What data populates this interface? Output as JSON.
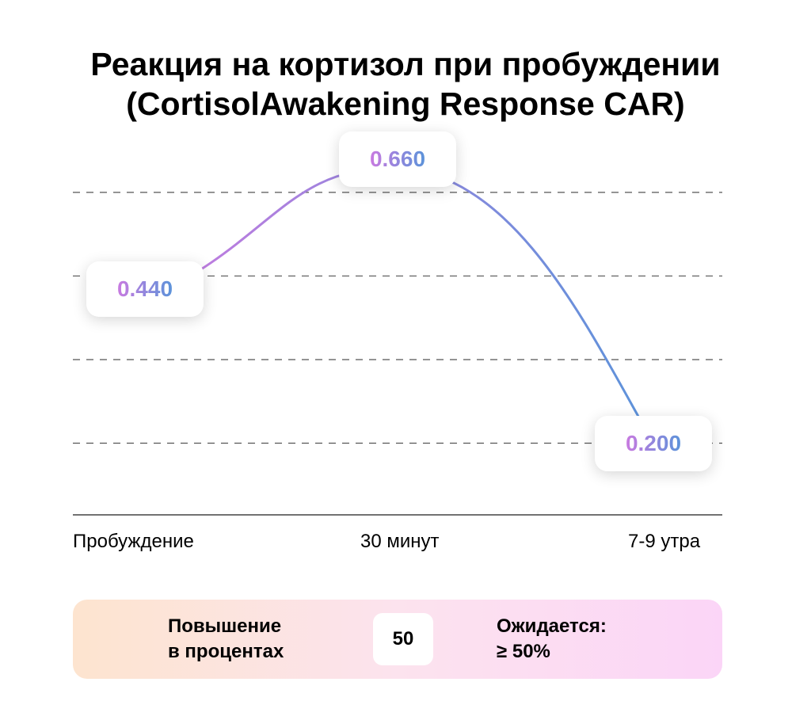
{
  "title": {
    "line1": "Реакция на кортизол при пробуждении",
    "line2": "(CortisolAwakening Response CAR)"
  },
  "colors": {
    "line_start": "#c97ae0",
    "line_end": "#5b93da",
    "grid": "#555555",
    "panel_start": "#fde4cf",
    "panel_end": "#fbd5f7"
  },
  "chart_data": {
    "type": "line",
    "title": "Реакция на кортизол при пробуждении (CortisolAwakening Response CAR)",
    "categories": [
      "Пробуждение",
      "30 минут",
      "7-9 утра"
    ],
    "series": [
      {
        "values": [
          0.44,
          0.66,
          0.2
        ]
      }
    ],
    "data_labels": [
      "0.440",
      "0.660",
      "0.200"
    ],
    "ylim": [
      0.08,
      0.71
    ],
    "gridlines": [
      0.2,
      0.34,
      0.48,
      0.62
    ],
    "grid": true,
    "curve": "smooth",
    "legend": "none"
  },
  "summary": {
    "increase_label_line1": "Повышение",
    "increase_label_line2": "в процентах",
    "increase_value": "50",
    "expected_label_line1": "Ожидается:",
    "expected_label_line2": "≥ 50%"
  }
}
